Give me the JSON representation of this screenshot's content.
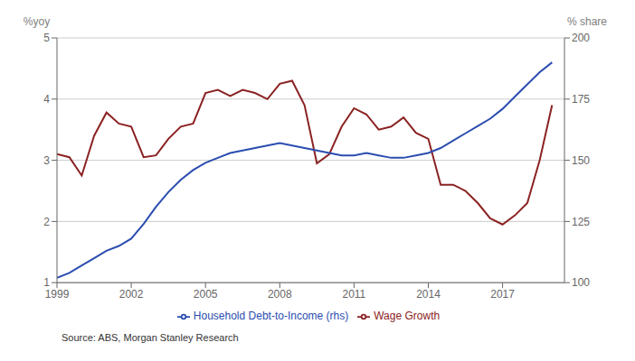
{
  "chart_data": {
    "type": "line",
    "ylabel": "%yoy",
    "y2label": "% share",
    "annotations": [
      "Source: ABS, Morgan Stanley Research"
    ],
    "x": [
      1999.0,
      1999.5,
      2000.0,
      2000.5,
      2001.0,
      2001.5,
      2002.0,
      2002.5,
      2003.0,
      2003.5,
      2004.0,
      2004.5,
      2005.0,
      2005.5,
      2006.0,
      2006.5,
      2007.0,
      2007.5,
      2008.0,
      2008.5,
      2009.0,
      2009.5,
      2010.0,
      2010.5,
      2011.0,
      2011.5,
      2012.0,
      2012.5,
      2013.0,
      2013.5,
      2014.0,
      2014.5,
      2015.0,
      2015.5,
      2016.0,
      2016.5,
      2017.0,
      2017.5,
      2018.0,
      2018.5,
      2019.0
    ],
    "series": [
      {
        "name": "Wage Growth",
        "color": "#8B2222",
        "values": [
          3.1,
          3.05,
          2.75,
          3.4,
          3.78,
          3.6,
          3.55,
          3.05,
          3.08,
          3.35,
          3.55,
          3.6,
          4.1,
          4.15,
          4.05,
          4.15,
          4.1,
          4.0,
          4.25,
          4.3,
          3.9,
          2.95,
          3.1,
          3.55,
          3.85,
          3.75,
          3.5,
          3.55,
          3.7,
          3.45,
          3.35,
          2.6,
          2.6,
          2.5,
          2.3,
          2.05,
          1.95,
          2.1,
          2.3,
          3.0,
          3.9
        ]
      },
      {
        "name": "Household Debt-to-Income (rhs)",
        "color": "#2B4DAF",
        "axis": "y2",
        "values": [
          102,
          104,
          107,
          110,
          113,
          115,
          118,
          124,
          131,
          137,
          142,
          146,
          149,
          151,
          153,
          154,
          155,
          156,
          157,
          156,
          155,
          154,
          153,
          152,
          152,
          153,
          152,
          151,
          151,
          152,
          153,
          155,
          158,
          161,
          164,
          167,
          171,
          176,
          181,
          186,
          190
        ]
      }
    ],
    "xlim": [
      1999,
      2019.5
    ],
    "xticks": [
      1999,
      2002,
      2005,
      2008,
      2011,
      2014,
      2017
    ],
    "ylim": [
      1,
      5
    ],
    "yticks": [
      1,
      2,
      3,
      4,
      5
    ],
    "y2lim": [
      100,
      200
    ],
    "y2ticks": [
      100,
      125,
      150,
      175,
      200
    ],
    "grid": true,
    "legend": "bottom"
  }
}
